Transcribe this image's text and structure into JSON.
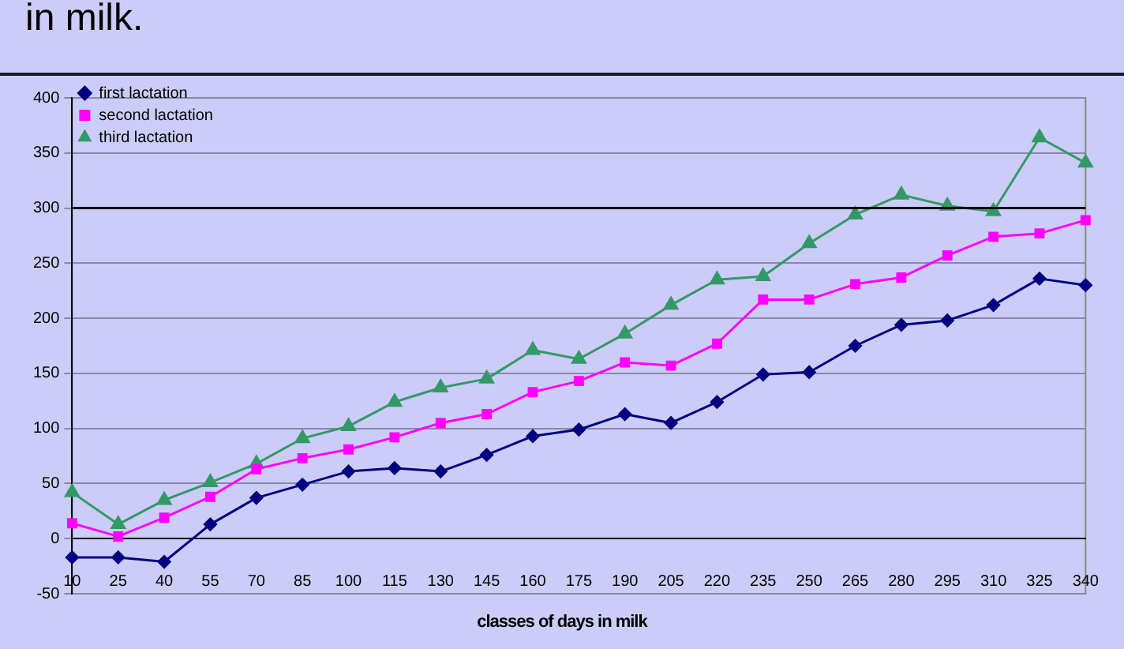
{
  "chart_data": {
    "type": "line",
    "title": "in milk.",
    "xlabel": "classes of days in milk",
    "categories": [
      "10",
      "25",
      "40",
      "55",
      "70",
      "85",
      "100",
      "115",
      "130",
      "145",
      "160",
      "175",
      "190",
      "205",
      "220",
      "235",
      "250",
      "265",
      "280",
      "295",
      "310",
      "325",
      "340"
    ],
    "series": [
      {
        "name": "first lactation",
        "color": "#000080",
        "marker": "diamond",
        "values": [
          -17,
          -17,
          -21,
          13,
          37,
          49,
          61,
          64,
          61,
          76,
          93,
          99,
          113,
          105,
          124,
          149,
          151,
          175,
          194,
          198,
          212,
          236,
          230
        ]
      },
      {
        "name": "second lactation",
        "color": "#ff00ff",
        "marker": "square",
        "values": [
          14,
          2,
          19,
          38,
          63,
          73,
          81,
          92,
          105,
          113,
          133,
          143,
          160,
          157,
          177,
          217,
          217,
          231,
          237,
          257,
          274,
          277,
          289
        ]
      },
      {
        "name": "third lactation",
        "color": "#339966",
        "marker": "triangle",
        "values": [
          42,
          13,
          35,
          51,
          68,
          91,
          102,
          124,
          137,
          145,
          171,
          163,
          186,
          212,
          235,
          238,
          268,
          294,
          312,
          302,
          297,
          364,
          341
        ]
      }
    ],
    "ylim": [
      -50,
      400
    ],
    "yticks": [
      -50,
      0,
      50,
      100,
      150,
      200,
      250,
      300,
      350,
      400
    ],
    "grid": "y",
    "legend": "top left",
    "line_style": "solid",
    "ref_lines": [
      {
        "axis": "y",
        "value": 300,
        "color": "#000000"
      }
    ]
  }
}
